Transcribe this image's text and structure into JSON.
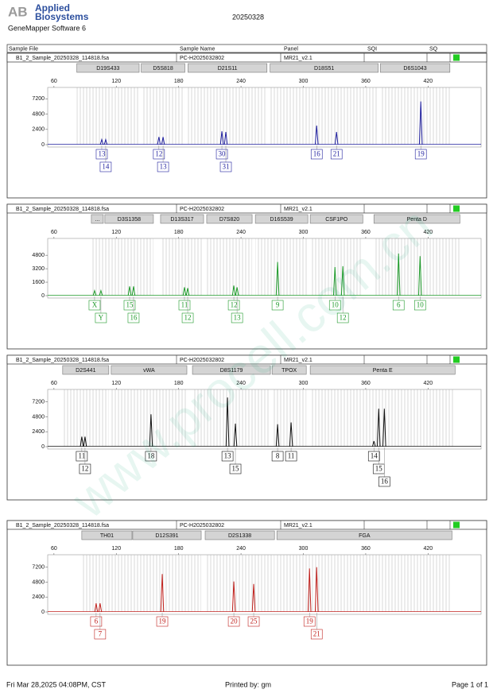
{
  "header": {
    "logo_mark": "AB",
    "company_line1": "Applied",
    "company_line2": "Biosystems",
    "software": "GeneMapper Software 6",
    "date": "20250328",
    "columns": [
      "Sample File",
      "Sample Name",
      "Panel",
      "SQI",
      "SQ"
    ]
  },
  "footer": {
    "printed_at": "Fri Mar 28,2025 04:08PM, CST",
    "printed_by": "Printed by: gm",
    "page": "Page 1 of 1"
  },
  "watermark": "www.procell.com.cn",
  "chart_data": [
    {
      "type": "electropherogram",
      "sample_file": "B1_2_Sample_20250328_114818.fsa",
      "sample_name": "PC-H2025032802",
      "panel": "MR21_v2.1",
      "color": "#1f1f9e",
      "xlim": [
        54,
        471
      ],
      "xticks": [
        60,
        120,
        180,
        240,
        300,
        360,
        420
      ],
      "ylim": [
        0,
        9000
      ],
      "yticks": [
        0,
        2400,
        4800,
        7200
      ],
      "loci": [
        {
          "name": "D19S433",
          "range": [
            82,
            142
          ]
        },
        {
          "name": "D5S818",
          "range": [
            144,
            186
          ]
        },
        {
          "name": "D21S11",
          "range": [
            189,
            265
          ]
        },
        {
          "name": "D18S51",
          "range": [
            268,
            372
          ]
        },
        {
          "name": "D6S1043",
          "range": [
            374,
            441
          ]
        }
      ],
      "x": [
        106,
        109.8,
        161,
        165,
        221.6,
        225.4,
        312.8,
        331.9,
        413
      ],
      "values": [
        800,
        800,
        1200,
        1200,
        2100,
        2000,
        3000,
        2000,
        6800
      ],
      "alleles": [
        "13",
        "14",
        "12",
        "13",
        "30",
        "31",
        "16",
        "21",
        "19"
      ]
    },
    {
      "type": "electropherogram",
      "sample_file": "B1_2_Sample_20250328_114818.fsa",
      "sample_name": "PC-H2025032802",
      "panel": "MR21_v2.1",
      "color": "#1e9a2a",
      "xlim": [
        54,
        471
      ],
      "xticks": [
        60,
        120,
        180,
        240,
        300,
        360,
        420
      ],
      "ylim": [
        0,
        6800
      ],
      "yticks": [
        0,
        1600,
        3200,
        4800
      ],
      "loci": [
        {
          "name": "...",
          "range": [
            96,
            107.5
          ]
        },
        {
          "name": "D3S1358",
          "range": [
            109,
            155.7
          ]
        },
        {
          "name": "D13S317",
          "range": [
            162.6,
            204
          ]
        },
        {
          "name": "D7S820",
          "range": [
            207,
            250.7
          ]
        },
        {
          "name": "D16S539",
          "range": [
            253.8,
            304.3
          ]
        },
        {
          "name": "CSF1PO",
          "range": [
            306.6,
            357.2
          ]
        },
        {
          "name": "Penta D",
          "range": [
            367.9,
            450.6
          ]
        }
      ],
      "x": [
        99.1,
        105.2,
        132.8,
        136.6,
        185.6,
        188.7,
        233.1,
        236.2,
        275.2,
        330.4,
        338,
        391.6,
        412.3
      ],
      "values": [
        600,
        600,
        1100,
        1100,
        1000,
        900,
        1200,
        1000,
        4000,
        3400,
        3500,
        5000,
        4700
      ],
      "alleles": [
        "X",
        "Y",
        "15",
        "16",
        "11",
        "12",
        "12",
        "13",
        "9",
        "10",
        "12",
        "6",
        "10"
      ]
    },
    {
      "type": "electropherogram",
      "sample_file": "B1_2_Sample_20250328_114818.fsa",
      "sample_name": "PC-H2025032802",
      "panel": "MR21_v2.1",
      "color": "#111111",
      "xlim": [
        54,
        471
      ],
      "xticks": [
        60,
        120,
        180,
        240,
        300,
        360,
        420
      ],
      "ylim": [
        0,
        9200
      ],
      "yticks": [
        0,
        2400,
        4800,
        7200
      ],
      "loci": [
        {
          "name": "D2S441",
          "range": [
            68.4,
            112.8
          ]
        },
        {
          "name": "vWA",
          "range": [
            115.1,
            187.9
          ]
        },
        {
          "name": "D8S1179",
          "range": [
            193.3,
            268.3
          ]
        },
        {
          "name": "TPOX",
          "range": [
            269.9,
            302.8
          ]
        },
        {
          "name": "Penta E",
          "range": [
            306.6,
            446
          ]
        }
      ],
      "x": [
        86.8,
        89.9,
        153.4,
        227,
        234.6,
        275.2,
        288.2,
        367.9,
        372.5,
        377.9
      ],
      "values": [
        1600,
        1600,
        5200,
        7900,
        3700,
        3600,
        3900,
        900,
        6100,
        6100
      ],
      "alleles": [
        "11",
        "12",
        "18",
        "13",
        "15",
        "8",
        "11",
        "14",
        "15",
        "16"
      ]
    },
    {
      "type": "electropherogram",
      "sample_file": "B1_2_Sample_20250328_114818.fsa",
      "sample_name": "PC-H2025032802",
      "panel": "MR21_v2.1",
      "color": "#c0221e",
      "xlim": [
        54,
        471
      ],
      "xticks": [
        60,
        120,
        180,
        240,
        300,
        360,
        420
      ],
      "ylim": [
        0,
        9200
      ],
      "yticks": [
        0,
        2400,
        4800,
        7200
      ],
      "loci": [
        {
          "name": "TH01",
          "range": [
            86.8,
            135.1
          ]
        },
        {
          "name": "D12S391",
          "range": [
            135.8,
            201.7
          ]
        },
        {
          "name": "D2S1338",
          "range": [
            205.5,
            272.2
          ]
        },
        {
          "name": "FGA",
          "range": [
            274.5,
            443
          ]
        }
      ],
      "x": [
        100.6,
        104.4,
        164.2,
        233.1,
        252.2,
        305.9,
        312.8
      ],
      "values": [
        1400,
        1400,
        6100,
        4900,
        4500,
        7000,
        7200
      ],
      "alleles": [
        "6",
        "7",
        "19",
        "20",
        "25",
        "19",
        "21"
      ]
    }
  ]
}
